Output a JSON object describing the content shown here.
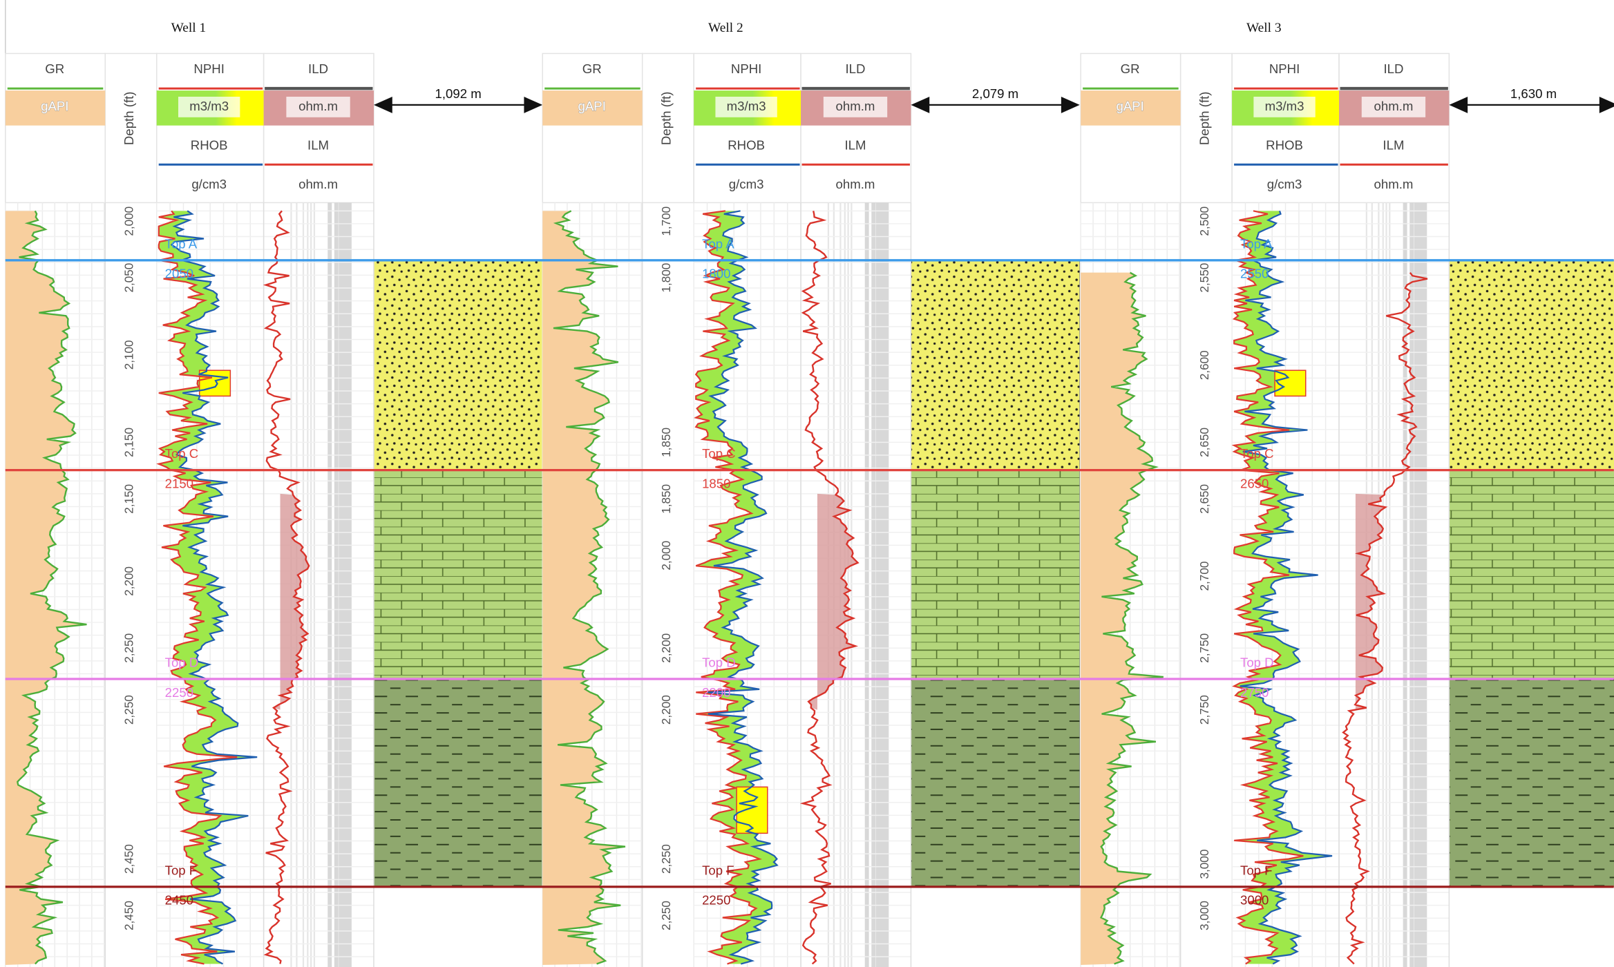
{
  "wells": [
    {
      "name": "Well 1",
      "gr": "GR",
      "gr_unit": "gAPI",
      "depth_title": "Depth (ft)",
      "nphi": "NPHI",
      "nphi_unit": "m3/m3",
      "rhob": "RHOB",
      "rhob_unit": "g/cm3",
      "ild": "ILD",
      "ild_unit": "ohm.m",
      "ilm": "ILM",
      "ilm_unit": "ohm.m",
      "depth_ticks": [
        "2,000",
        "2,050",
        "2,100",
        "2,150",
        "2,150",
        "2,200",
        "2,250",
        "2,250",
        "2,450",
        "2,450"
      ],
      "tops": [
        {
          "name": "Top A",
          "depth": 2050
        },
        {
          "name": "Top C",
          "depth": 2150
        },
        {
          "name": "Top D",
          "depth": 2250
        },
        {
          "name": "Top F",
          "depth": 2450
        }
      ],
      "distance": "1,092 m"
    },
    {
      "name": "Well 2",
      "gr": "GR",
      "gr_unit": "gAPI",
      "depth_title": "Depth (ft)",
      "nphi": "NPHI",
      "nphi_unit": "m3/m3",
      "rhob": "RHOB",
      "rhob_unit": "g/cm3",
      "ild": "ILD",
      "ild_unit": "ohm.m",
      "ilm": "ILM",
      "ilm_unit": "ohm.m",
      "depth_ticks": [
        "1,700",
        "1,800",
        "1,850",
        "1,850",
        "2,000",
        "2,200",
        "2,200",
        "2,250",
        "2,250"
      ],
      "tops": [
        {
          "name": "Top A",
          "depth": 1800
        },
        {
          "name": "Top C",
          "depth": 1850
        },
        {
          "name": "Top D",
          "depth": 2200
        },
        {
          "name": "Top F",
          "depth": 2250
        }
      ],
      "distance": "2,079 m"
    },
    {
      "name": "Well 3",
      "gr": "GR",
      "gr_unit": "gAPI",
      "depth_title": "Depth (ft)",
      "nphi": "NPHI",
      "nphi_unit": "m3/m3",
      "rhob": "RHOB",
      "rhob_unit": "g/cm3",
      "ild": "ILD",
      "ild_unit": "ohm.m",
      "ilm": "ILM",
      "ilm_unit": "ohm.m",
      "depth_ticks": [
        "2,500",
        "2,550",
        "2,600",
        "2,650",
        "2,650",
        "2,700",
        "2,750",
        "2,750",
        "3,000",
        "3,000"
      ],
      "tops": [
        {
          "name": "Top A",
          "depth": 2550
        },
        {
          "name": "Top C",
          "depth": 2650
        },
        {
          "name": "Top D",
          "depth": 2750
        },
        {
          "name": "Top F",
          "depth": 3000
        }
      ],
      "distance": "1,630 m"
    }
  ]
}
